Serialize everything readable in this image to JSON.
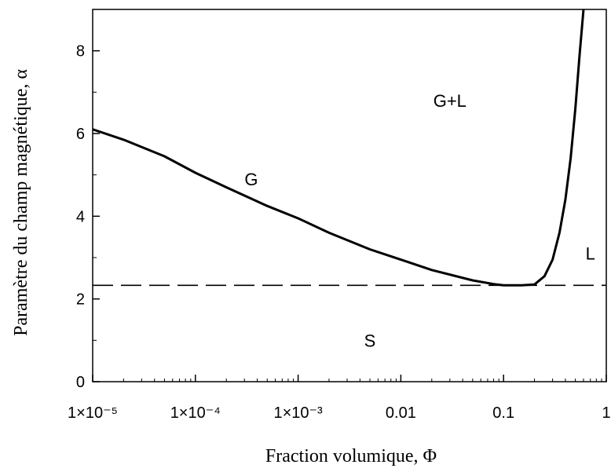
{
  "chart_data": {
    "type": "line",
    "xscale": "log",
    "xlim": [
      1e-05,
      1
    ],
    "ylim": [
      0,
      9
    ],
    "xlabel": "Fraction volumique, Φ",
    "ylabel": "Paramètre du champ magnétique, α",
    "x_ticks": [
      {
        "value": 1e-05,
        "label": "1×10⁻⁵"
      },
      {
        "value": 0.0001,
        "label": "1×10⁻⁴"
      },
      {
        "value": 0.001,
        "label": "1×10⁻³"
      },
      {
        "value": 0.01,
        "label": "0.01"
      },
      {
        "value": 0.1,
        "label": "0.1"
      },
      {
        "value": 1,
        "label": "1"
      }
    ],
    "y_ticks": [
      {
        "value": 0,
        "label": "0"
      },
      {
        "value": 2,
        "label": "2"
      },
      {
        "value": 4,
        "label": "4"
      },
      {
        "value": 6,
        "label": "6"
      },
      {
        "value": 8,
        "label": "8"
      }
    ],
    "series": [
      {
        "style": "solid",
        "x": [
          1e-05,
          2e-05,
          5e-05,
          0.0001,
          0.0002,
          0.0005,
          0.001,
          0.002,
          0.005,
          0.01,
          0.02,
          0.05,
          0.08,
          0.1,
          0.12,
          0.15,
          0.2,
          0.25,
          0.3,
          0.35,
          0.4,
          0.45,
          0.5,
          0.55,
          0.6
        ],
        "y": [
          6.1,
          5.85,
          5.45,
          5.05,
          4.7,
          4.25,
          3.95,
          3.6,
          3.2,
          2.95,
          2.7,
          2.45,
          2.36,
          2.33,
          2.33,
          2.33,
          2.35,
          2.55,
          2.95,
          3.6,
          4.4,
          5.4,
          6.6,
          7.9,
          9.0
        ]
      },
      {
        "style": "dashed",
        "x": [
          1e-05,
          1
        ],
        "y": [
          2.33,
          2.33
        ]
      }
    ],
    "annotations": [
      {
        "text": "G",
        "x": 0.00035,
        "y": 4.9
      },
      {
        "text": "G+L",
        "x": 0.03,
        "y": 6.8
      },
      {
        "text": "L",
        "x": 0.7,
        "y": 3.1
      },
      {
        "text": "S",
        "x": 0.005,
        "y": 1.0
      }
    ],
    "grid": false
  }
}
